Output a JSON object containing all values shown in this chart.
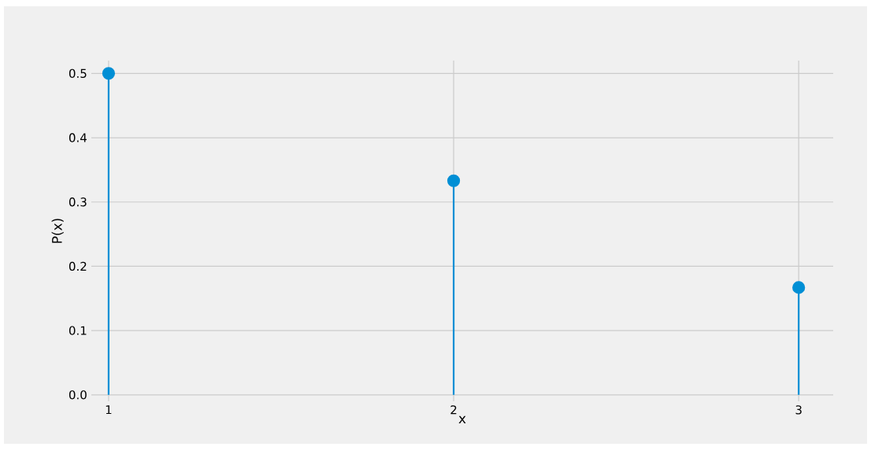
{
  "chart_data": {
    "type": "lollipop",
    "xlabel": "x",
    "ylabel": "P(x)",
    "x": [
      1,
      2,
      3
    ],
    "series": [
      {
        "color": "#008fd5",
        "values": [
          0.5,
          0.333,
          0.167
        ]
      }
    ],
    "xlim": [
      0.95,
      3.1
    ],
    "ylim": [
      -0.01,
      0.52
    ],
    "xticks": [
      1,
      2,
      3
    ],
    "yticks": [
      {
        "value": 0,
        "label": "0.0"
      },
      {
        "value": 0.1,
        "label": "0.1"
      },
      {
        "value": 0.2,
        "label": "0.2"
      },
      {
        "value": 0.3,
        "label": "0.3"
      },
      {
        "value": 0.4,
        "label": "0.4"
      },
      {
        "value": 0.5,
        "label": "0.5"
      }
    ],
    "grid": true,
    "marker": "circle"
  }
}
